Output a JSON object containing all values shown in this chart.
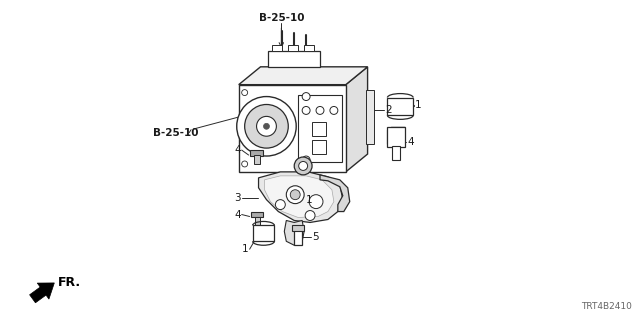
{
  "bg_color": "#ffffff",
  "fig_width": 6.4,
  "fig_height": 3.2,
  "labels": {
    "B_25_10_top": "B-25-10",
    "B_25_10_left": "B-25-10",
    "label_1a": "1",
    "label_2": "2",
    "label_3": "3",
    "label_4a": "4",
    "label_4b": "4",
    "label_4c": "4",
    "label_1b": "1",
    "label_1c": "1",
    "label_5": "5",
    "fr_label": "FR.",
    "diagram_id": "TRT4B2410"
  },
  "colors": {
    "line": "#2a2a2a",
    "text": "#1a1a1a",
    "bg": "#ffffff",
    "gray_light": "#dddddd",
    "gray_mid": "#bbbbbb",
    "gray_dark": "#888888"
  }
}
